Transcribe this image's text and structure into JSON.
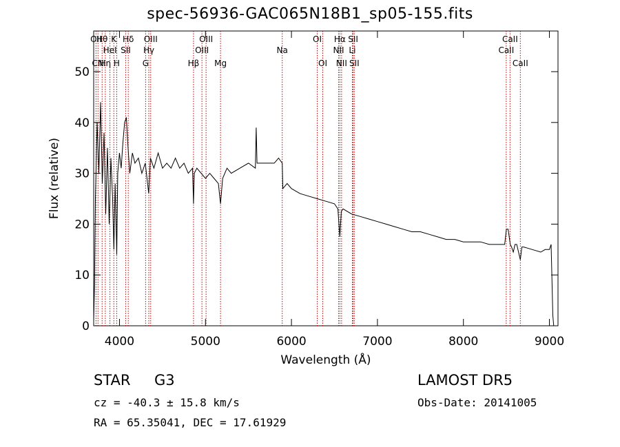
{
  "chart_data": {
    "type": "line",
    "title": "spec-56936-GAC065N18B1_sp05-155.fits",
    "xlabel": "Wavelength (Å)",
    "ylabel": "Flux (relative)",
    "xlim": [
      3700,
      9100
    ],
    "ylim": [
      0,
      58
    ],
    "x_ticks": [
      4000,
      5000,
      6000,
      7000,
      8000,
      9000
    ],
    "y_ticks": [
      0,
      10,
      20,
      30,
      40,
      50
    ],
    "grid": false,
    "series": [
      {
        "x": [
          3700,
          3710,
          3720,
          3740,
          3760,
          3780,
          3800,
          3820,
          3840,
          3860,
          3880,
          3900,
          3920,
          3935,
          3950,
          3968,
          3980,
          4000,
          4020,
          4040,
          4060,
          4080,
          4100,
          4120,
          4150,
          4180,
          4220,
          4260,
          4300,
          4320,
          4340,
          4360,
          4400,
          4450,
          4500,
          4550,
          4600,
          4650,
          4700,
          4750,
          4800,
          4850,
          4861,
          4870,
          4900,
          4950,
          5000,
          5050,
          5100,
          5150,
          5175,
          5200,
          5250,
          5300,
          5400,
          5500,
          5580,
          5590,
          5600,
          5700,
          5800,
          5850,
          5893,
          5900,
          5950,
          6000,
          6100,
          6200,
          6300,
          6400,
          6500,
          6540,
          6563,
          6580,
          6600,
          6700,
          6800,
          6900,
          7000,
          7100,
          7200,
          7300,
          7400,
          7500,
          7600,
          7700,
          7800,
          7900,
          8000,
          8100,
          8200,
          8300,
          8400,
          8480,
          8500,
          8520,
          8545,
          8560,
          8580,
          8600,
          8620,
          8662,
          8680,
          8700,
          8800,
          8900,
          8950,
          9000,
          9020,
          9040,
          9050
        ],
        "y": [
          1,
          8,
          25,
          40,
          30,
          44,
          28,
          38,
          22,
          35,
          20,
          33,
          25,
          15,
          28,
          14,
          30,
          34,
          31,
          36,
          40,
          41,
          35,
          30,
          34,
          32,
          33,
          30,
          32,
          29,
          26,
          33,
          31,
          34,
          31,
          32,
          31,
          33,
          31,
          32,
          30,
          31,
          24,
          30,
          31,
          30,
          29,
          30,
          29,
          28,
          24,
          29,
          31,
          30,
          31,
          32,
          31,
          39,
          32,
          32,
          32,
          33,
          32,
          27,
          28,
          27,
          26,
          25.5,
          25,
          24.5,
          24,
          23,
          17.5,
          22.5,
          23,
          22,
          21.5,
          21,
          20.5,
          20,
          19.5,
          19,
          18.5,
          18.5,
          18,
          17.5,
          17,
          17,
          16.5,
          16.5,
          16.5,
          16,
          16,
          16,
          19,
          19,
          16,
          15.5,
          14.5,
          16,
          16,
          13,
          15.5,
          15.5,
          15,
          14.5,
          15,
          15,
          16,
          2,
          0
        ]
      }
    ],
    "lines": [
      {
        "x": 3727,
        "label": "OII",
        "row": 1
      },
      {
        "x": 3750,
        "label": "CN",
        "row": 3
      },
      {
        "x": 3798,
        "label": "Hθ",
        "row": 1
      },
      {
        "x": 3835,
        "label": "Hη",
        "row": 3
      },
      {
        "x": 3889,
        "label": "HeI",
        "row": 2
      },
      {
        "x": 3934,
        "label": "K",
        "row": 1
      },
      {
        "x": 3968,
        "label": "H",
        "row": 3
      },
      {
        "x": 4072,
        "label": "SII",
        "row": 2
      },
      {
        "x": 4102,
        "label": "Hδ",
        "row": 1
      },
      {
        "x": 4304,
        "label": "G",
        "row": 3
      },
      {
        "x": 4341,
        "label": "Hγ",
        "row": 2
      },
      {
        "x": 4363,
        "label": "OIII",
        "row": 1
      },
      {
        "x": 4861,
        "label": "Hβ",
        "row": 3
      },
      {
        "x": 4959,
        "label": "OIII",
        "row": 2
      },
      {
        "x": 5007,
        "label": "OIII",
        "row": 1
      },
      {
        "x": 5175,
        "label": "Mg",
        "row": 3
      },
      {
        "x": 5893,
        "label": "Na",
        "row": 2
      },
      {
        "x": 6300,
        "label": "OI",
        "row": 1
      },
      {
        "x": 6364,
        "label": "OI",
        "row": 3
      },
      {
        "x": 6548,
        "label": "NII",
        "row": 2
      },
      {
        "x": 6563,
        "label": "Hα",
        "row": 1
      },
      {
        "x": 6583,
        "label": "NII",
        "row": 3
      },
      {
        "x": 6708,
        "label": "Li",
        "row": 2
      },
      {
        "x": 6717,
        "label": "SII",
        "row": 1
      },
      {
        "x": 6731,
        "label": "SII",
        "row": 3
      },
      {
        "x": 8498,
        "label": "CaII",
        "row": 2
      },
      {
        "x": 8542,
        "label": "CaII",
        "row": 1
      },
      {
        "x": 8662,
        "label": "CaII",
        "row": 3
      }
    ]
  },
  "info": {
    "object_class": "STAR",
    "subclass": "G3",
    "survey": "LAMOST DR5",
    "redshift": "cz = -40.3 ± 15.8 km/s",
    "obs_date": "Obs-Date: 20141005",
    "coords": "RA =  65.35041, DEC =  17.61929"
  }
}
